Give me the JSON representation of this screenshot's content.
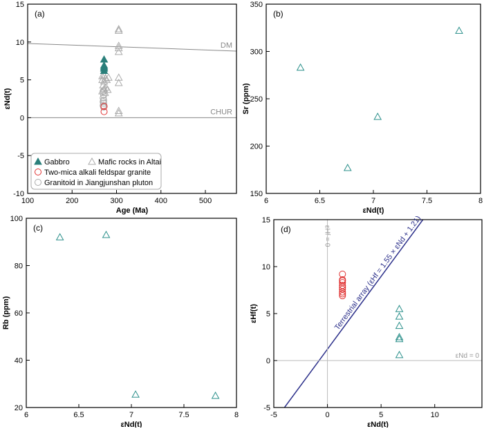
{
  "chart_data": [
    {
      "type": "scatter",
      "panel": "(a)",
      "xlabel": "Age (Ma)",
      "ylabel": "εNd(t)",
      "xlim": [
        100,
        570
      ],
      "ylim": [
        -10,
        15
      ],
      "xticks": [
        100,
        200,
        300,
        400,
        500
      ],
      "yticks": [
        -10,
        -5,
        0,
        5,
        10,
        15
      ],
      "lines": [
        {
          "name": "DM",
          "x": [
            100,
            570
          ],
          "y": [
            9.8,
            8.8
          ],
          "color": "#888888"
        },
        {
          "name": "CHUR",
          "x": [
            100,
            570
          ],
          "y": [
            0,
            0
          ],
          "color": "#888888"
        }
      ],
      "series": [
        {
          "name": "Mafic rocks in Altai",
          "marker": "triangle-open",
          "color": "#aaaaaa",
          "points": [
            [
              305,
              11.7
            ],
            [
              305,
              11.5
            ],
            [
              305,
              9.5
            ],
            [
              305,
              9.2
            ],
            [
              305,
              8.7
            ],
            [
              305,
              5.3
            ],
            [
              305,
              4.6
            ],
            [
              305,
              0.9
            ],
            [
              305,
              0.6
            ],
            [
              268,
              5.5
            ],
            [
              272,
              5.6
            ],
            [
              275,
              5.2
            ],
            [
              268,
              5.0
            ],
            [
              278,
              5.0
            ],
            [
              282,
              5.3
            ],
            [
              272,
              4.8
            ],
            [
              270,
              4.3
            ],
            [
              276,
              4.0
            ],
            [
              280,
              3.7
            ],
            [
              272,
              3.8
            ],
            [
              268,
              3.5
            ],
            [
              274,
              3.3
            ]
          ]
        },
        {
          "name": "Granitoid in Jiangjunshan pluton",
          "marker": "circle-open",
          "color": "#aaaaaa",
          "points": [
            [
              270,
              3.5
            ],
            [
              271,
              3.0
            ],
            [
              270,
              2.6
            ],
            [
              271,
              2.3
            ],
            [
              270,
              2.1
            ],
            [
              271,
              1.9
            ],
            [
              270,
              1.6
            ],
            [
              271,
              1.4
            ]
          ]
        },
        {
          "name": "Gabbro",
          "marker": "triangle-filled",
          "color": "#2a7f7a",
          "points": [
            [
              272,
              7.7
            ],
            [
              272,
              6.9
            ],
            [
              272,
              6.7
            ],
            [
              272,
              6.5
            ],
            [
              272,
              6.2
            ]
          ]
        },
        {
          "name": "Two-mica alkali feldspar granite",
          "marker": "circle-open",
          "color": "#e03030",
          "points": [
            [
              272,
              1.5
            ],
            [
              272,
              0.8
            ]
          ]
        }
      ],
      "legend": [
        "Gabbro",
        "Mafic rocks in Altai",
        "Two-mica alkali feldspar granite",
        "Granitoid in Jiangjunshan pluton"
      ],
      "legend_position": "bottom-left"
    },
    {
      "type": "scatter",
      "panel": "(b)",
      "xlabel": "εNd(t)",
      "ylabel": "Sr (ppm)",
      "xlim": [
        6,
        8
      ],
      "ylim": [
        150,
        350
      ],
      "xticks": [
        6,
        6.5,
        7,
        7.5,
        8
      ],
      "yticks": [
        150,
        200,
        250,
        300,
        350
      ],
      "series": [
        {
          "name": "Gabbro",
          "marker": "triangle-open",
          "color": "#2a8f8a",
          "points": [
            [
              6.32,
              283
            ],
            [
              6.76,
              177
            ],
            [
              7.04,
              231
            ],
            [
              7.8,
              322
            ]
          ]
        }
      ]
    },
    {
      "type": "scatter",
      "panel": "(c)",
      "xlabel": "εNd(t)",
      "ylabel": "Rb (ppm)",
      "xlim": [
        6,
        8
      ],
      "ylim": [
        20,
        100
      ],
      "xticks": [
        6,
        6.5,
        7,
        7.5,
        8
      ],
      "yticks": [
        20,
        40,
        60,
        80,
        100
      ],
      "series": [
        {
          "name": "Gabbro",
          "marker": "triangle-open",
          "color": "#2a8f8a",
          "points": [
            [
              6.32,
              92
            ],
            [
              6.76,
              93
            ],
            [
              7.04,
              25.5
            ],
            [
              7.8,
              25
            ]
          ]
        }
      ]
    },
    {
      "type": "scatter",
      "panel": "(d)",
      "xlabel": "εNd(t)",
      "ylabel": "εHf(t)",
      "xlim": [
        -5,
        14.4
      ],
      "ylim": [
        -5,
        15
      ],
      "xticks": [
        -5,
        0,
        5,
        10
      ],
      "yticks": [
        -5,
        0,
        5,
        10,
        15
      ],
      "lines": [
        {
          "name": "Terrestrial array (εHf = 1.55 × εNd + 1.21)",
          "x": [
            -4,
            8.9
          ],
          "y": [
            -4.99,
            15
          ],
          "color": "#2b2f8a"
        },
        {
          "name": "εHf = 0",
          "x": [
            0,
            0
          ],
          "y": [
            -5,
            15
          ],
          "color": "#bbbbbb",
          "vertical": true
        },
        {
          "name": "εNd = 0",
          "x": [
            -5,
            14.4
          ],
          "y": [
            0,
            0
          ],
          "color": "#bbbbbb"
        }
      ],
      "series": [
        {
          "name": "Two-mica alkali feldspar granite",
          "marker": "circle-open",
          "color": "#e03030",
          "points": [
            [
              1.4,
              9.2
            ],
            [
              1.4,
              8.6
            ],
            [
              1.4,
              8.5
            ],
            [
              1.4,
              8.3
            ],
            [
              1.4,
              8.0
            ],
            [
              1.4,
              7.8
            ],
            [
              1.4,
              7.6
            ],
            [
              1.4,
              7.3
            ],
            [
              1.4,
              7.1
            ],
            [
              1.4,
              6.9
            ]
          ]
        },
        {
          "name": "Gabbro",
          "marker": "triangle-open",
          "color": "#2a8f8a",
          "points": [
            [
              6.7,
              5.5
            ],
            [
              6.7,
              4.7
            ],
            [
              6.7,
              3.7
            ],
            [
              6.7,
              2.5
            ],
            [
              6.7,
              2.3
            ],
            [
              6.7,
              0.6
            ]
          ]
        }
      ]
    }
  ]
}
